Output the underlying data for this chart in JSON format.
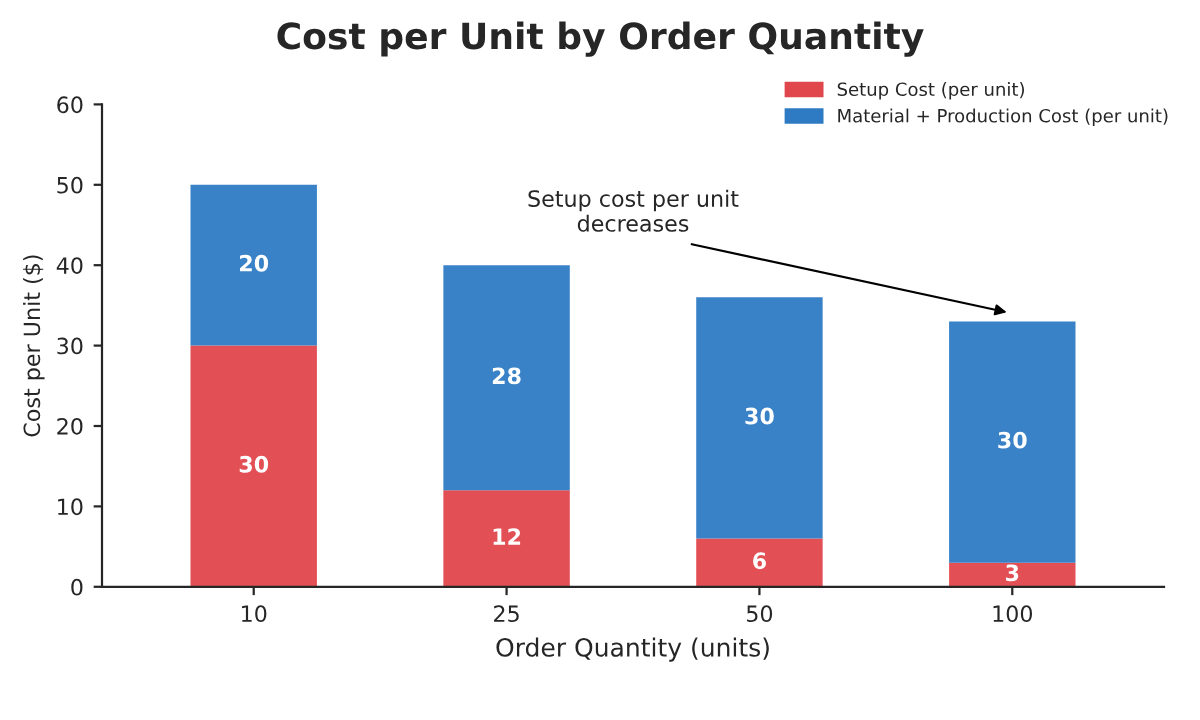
{
  "chart_data": {
    "type": "bar",
    "title": "Cost per Unit by Order Quantity",
    "xlabel": "Order Quantity (units)",
    "ylabel": "Cost per Unit ($)",
    "categories": [
      "10",
      "25",
      "50",
      "100"
    ],
    "series": [
      {
        "name": "Setup Cost (per unit)",
        "color": "#e0474c",
        "values": [
          30,
          12,
          6,
          3
        ]
      },
      {
        "name": "Material + Production Cost (per unit)",
        "color": "#2e7bc4",
        "values": [
          20,
          28,
          30,
          30
        ]
      }
    ],
    "stacked": true,
    "data_labels": true,
    "ylim": [
      0,
      60
    ],
    "yticks": [
      0,
      10,
      20,
      30,
      40,
      50,
      60
    ],
    "grid": false,
    "legend": "top right",
    "annotations": [
      {
        "text": "Setup cost per unit\ndecreases",
        "x": "100",
        "y": 34
      }
    ]
  }
}
